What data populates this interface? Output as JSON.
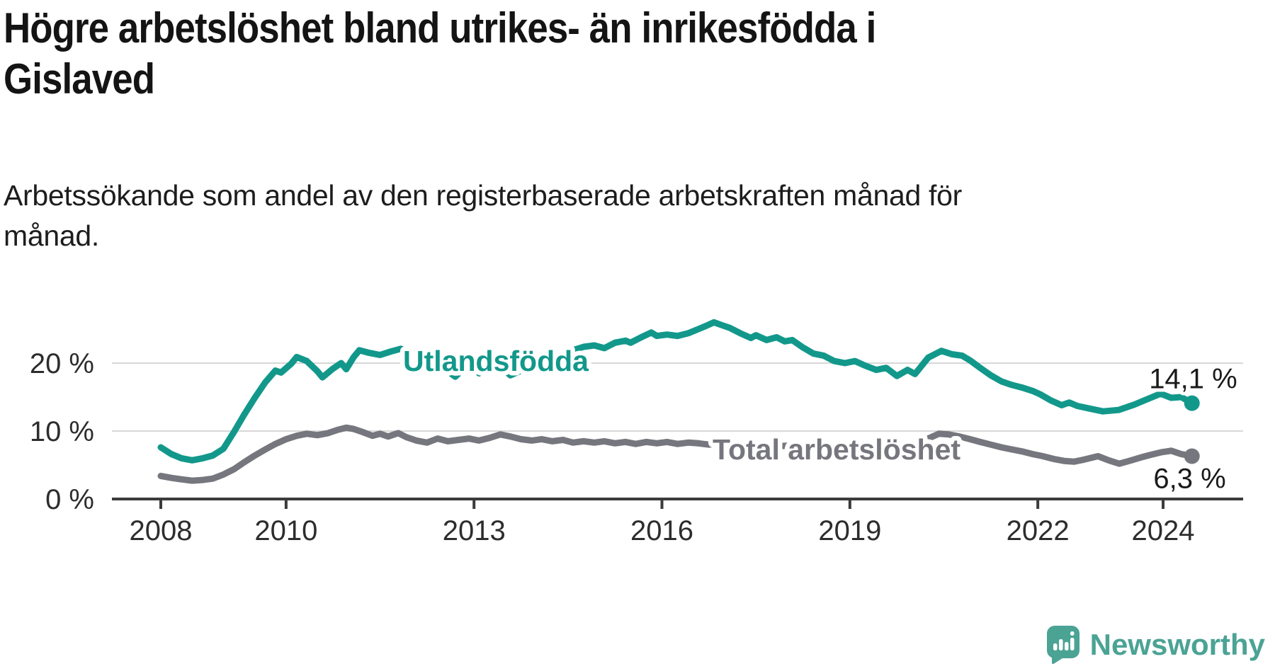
{
  "header": {
    "title_line1": "Högre arbetslöshet bland utrikes- än inrikesfödda i",
    "title_line2": "Gislaved",
    "subtitle_line1": "Arbetssökande som andel av den registerbaserade arbetskraften månad för",
    "subtitle_line2": "månad."
  },
  "footer": {
    "brand": "Newsworthy"
  },
  "colors": {
    "foreign_born": "#12988b",
    "total": "#76767e",
    "grid": "#d8d8d8",
    "axis": "#3b3b3b",
    "tick_text": "#2d2d2d",
    "value_text": "#1a1a1a",
    "brand": "#4ba394",
    "background": "#ffffff"
  },
  "chart_data": {
    "type": "line",
    "title": "Högre arbetslöshet bland utrikes- än inrikesfödda i Gislaved",
    "subtitle": "Arbetssökande som andel av den registerbaserade arbetskraften månad för månad.",
    "xlabel": "",
    "ylabel": "",
    "grid": "horizontal",
    "legend_position": "inline-on-line",
    "x_axis": {
      "range": [
        2007.22,
        2025.28
      ],
      "ticks": [
        {
          "value": 2008,
          "label": "2008"
        },
        {
          "value": 2010,
          "label": "2010"
        },
        {
          "value": 2013,
          "label": "2013"
        },
        {
          "value": 2016,
          "label": "2016"
        },
        {
          "value": 2019,
          "label": "2019"
        },
        {
          "value": 2022,
          "label": "2022"
        },
        {
          "value": 2024,
          "label": "2024"
        }
      ]
    },
    "y_axis": {
      "unit": "%",
      "range": [
        0,
        30.5
      ],
      "ticks": [
        {
          "value": 0,
          "label": "0 %"
        },
        {
          "value": 10,
          "label": "10 %"
        },
        {
          "value": 20,
          "label": "20 %"
        }
      ]
    },
    "series": [
      {
        "name": "Utlandsfödda",
        "color_key": "foreign_born",
        "end_value": 14.1,
        "end_label": "14,1 %",
        "points": [
          [
            2008.0,
            7.6
          ],
          [
            2008.17,
            6.6
          ],
          [
            2008.33,
            6.0
          ],
          [
            2008.5,
            5.7
          ],
          [
            2008.67,
            6.0
          ],
          [
            2008.83,
            6.4
          ],
          [
            2009.0,
            7.4
          ],
          [
            2009.17,
            9.9
          ],
          [
            2009.33,
            12.4
          ],
          [
            2009.5,
            14.9
          ],
          [
            2009.67,
            17.2
          ],
          [
            2009.83,
            18.9
          ],
          [
            2009.92,
            18.6
          ],
          [
            2010.08,
            19.9
          ],
          [
            2010.17,
            20.9
          ],
          [
            2010.33,
            20.3
          ],
          [
            2010.5,
            18.8
          ],
          [
            2010.58,
            17.9
          ],
          [
            2010.75,
            19.2
          ],
          [
            2010.88,
            20.0
          ],
          [
            2010.96,
            19.1
          ],
          [
            2011.08,
            20.9
          ],
          [
            2011.17,
            21.9
          ],
          [
            2011.33,
            21.5
          ],
          [
            2011.5,
            21.2
          ],
          [
            2011.67,
            21.7
          ],
          [
            2011.83,
            22.1
          ],
          [
            2012.0,
            21.6
          ],
          [
            2012.17,
            20.7
          ],
          [
            2012.33,
            19.8
          ],
          [
            2012.42,
            20.4
          ],
          [
            2012.58,
            18.8
          ],
          [
            2012.7,
            18.0
          ],
          [
            2012.83,
            19.1
          ],
          [
            2012.92,
            19.8
          ],
          [
            2013.08,
            18.5
          ],
          [
            2013.25,
            19.2
          ],
          [
            2013.42,
            19.5
          ],
          [
            2013.58,
            18.2
          ],
          [
            2013.75,
            18.9
          ],
          [
            2013.92,
            19.6
          ],
          [
            2014.08,
            20.2
          ],
          [
            2014.25,
            20.7
          ],
          [
            2014.42,
            21.3
          ],
          [
            2014.58,
            21.9
          ],
          [
            2014.75,
            22.4
          ],
          [
            2014.92,
            22.6
          ],
          [
            2015.08,
            22.2
          ],
          [
            2015.25,
            23.0
          ],
          [
            2015.42,
            23.3
          ],
          [
            2015.5,
            23.0
          ],
          [
            2015.67,
            23.8
          ],
          [
            2015.83,
            24.5
          ],
          [
            2015.92,
            24.0
          ],
          [
            2016.08,
            24.2
          ],
          [
            2016.25,
            24.0
          ],
          [
            2016.42,
            24.4
          ],
          [
            2016.58,
            25.0
          ],
          [
            2016.71,
            25.5
          ],
          [
            2016.83,
            26.0
          ],
          [
            2016.95,
            25.6
          ],
          [
            2017.08,
            25.2
          ],
          [
            2017.25,
            24.4
          ],
          [
            2017.42,
            23.7
          ],
          [
            2017.5,
            24.1
          ],
          [
            2017.67,
            23.4
          ],
          [
            2017.83,
            23.8
          ],
          [
            2017.96,
            23.2
          ],
          [
            2018.08,
            23.4
          ],
          [
            2018.25,
            22.3
          ],
          [
            2018.42,
            21.4
          ],
          [
            2018.58,
            21.1
          ],
          [
            2018.75,
            20.3
          ],
          [
            2018.92,
            20.0
          ],
          [
            2019.08,
            20.3
          ],
          [
            2019.25,
            19.6
          ],
          [
            2019.42,
            19.0
          ],
          [
            2019.58,
            19.3
          ],
          [
            2019.75,
            18.1
          ],
          [
            2019.92,
            19.0
          ],
          [
            2020.04,
            18.4
          ],
          [
            2020.25,
            20.8
          ],
          [
            2020.46,
            21.8
          ],
          [
            2020.63,
            21.3
          ],
          [
            2020.79,
            21.1
          ],
          [
            2020.92,
            20.4
          ],
          [
            2021.08,
            19.3
          ],
          [
            2021.25,
            18.2
          ],
          [
            2021.42,
            17.3
          ],
          [
            2021.58,
            16.8
          ],
          [
            2021.75,
            16.4
          ],
          [
            2021.92,
            15.9
          ],
          [
            2022.04,
            15.4
          ],
          [
            2022.21,
            14.5
          ],
          [
            2022.38,
            13.8
          ],
          [
            2022.5,
            14.2
          ],
          [
            2022.63,
            13.7
          ],
          [
            2022.83,
            13.3
          ],
          [
            2023.04,
            12.9
          ],
          [
            2023.29,
            13.1
          ],
          [
            2023.54,
            13.9
          ],
          [
            2023.75,
            14.7
          ],
          [
            2023.96,
            15.5
          ],
          [
            2024.13,
            14.9
          ],
          [
            2024.29,
            15.0
          ],
          [
            2024.46,
            14.1
          ]
        ]
      },
      {
        "name": "Total arbetslöshet",
        "color_key": "total",
        "end_value": 6.3,
        "end_label": "6,3 %",
        "points": [
          [
            2008.0,
            3.4
          ],
          [
            2008.17,
            3.1
          ],
          [
            2008.33,
            2.9
          ],
          [
            2008.5,
            2.7
          ],
          [
            2008.67,
            2.8
          ],
          [
            2008.83,
            3.0
          ],
          [
            2009.0,
            3.6
          ],
          [
            2009.17,
            4.4
          ],
          [
            2009.33,
            5.4
          ],
          [
            2009.5,
            6.4
          ],
          [
            2009.67,
            7.3
          ],
          [
            2009.83,
            8.1
          ],
          [
            2010.0,
            8.8
          ],
          [
            2010.17,
            9.3
          ],
          [
            2010.33,
            9.6
          ],
          [
            2010.5,
            9.4
          ],
          [
            2010.67,
            9.7
          ],
          [
            2010.83,
            10.2
          ],
          [
            2010.96,
            10.5
          ],
          [
            2011.08,
            10.3
          ],
          [
            2011.21,
            9.9
          ],
          [
            2011.38,
            9.3
          ],
          [
            2011.5,
            9.6
          ],
          [
            2011.63,
            9.2
          ],
          [
            2011.79,
            9.7
          ],
          [
            2011.92,
            9.1
          ],
          [
            2012.08,
            8.6
          ],
          [
            2012.25,
            8.3
          ],
          [
            2012.42,
            8.9
          ],
          [
            2012.58,
            8.5
          ],
          [
            2012.75,
            8.7
          ],
          [
            2012.92,
            8.9
          ],
          [
            2013.08,
            8.6
          ],
          [
            2013.25,
            9.0
          ],
          [
            2013.42,
            9.5
          ],
          [
            2013.58,
            9.2
          ],
          [
            2013.75,
            8.8
          ],
          [
            2013.92,
            8.6
          ],
          [
            2014.08,
            8.8
          ],
          [
            2014.25,
            8.5
          ],
          [
            2014.42,
            8.7
          ],
          [
            2014.58,
            8.3
          ],
          [
            2014.75,
            8.5
          ],
          [
            2014.92,
            8.3
          ],
          [
            2015.08,
            8.5
          ],
          [
            2015.25,
            8.2
          ],
          [
            2015.42,
            8.4
          ],
          [
            2015.58,
            8.1
          ],
          [
            2015.75,
            8.4
          ],
          [
            2015.92,
            8.2
          ],
          [
            2016.08,
            8.4
          ],
          [
            2016.25,
            8.1
          ],
          [
            2016.42,
            8.3
          ],
          [
            2016.58,
            8.2
          ],
          [
            2016.75,
            8.0
          ],
          [
            2016.92,
            8.3
          ],
          [
            2017.08,
            8.1
          ],
          [
            2017.25,
            7.9
          ],
          [
            2017.42,
            8.1
          ],
          [
            2017.58,
            7.9
          ],
          [
            2017.75,
            8.0
          ],
          [
            2017.92,
            7.8
          ],
          [
            2018.08,
            7.9
          ],
          [
            2018.25,
            7.7
          ],
          [
            2018.42,
            7.8
          ],
          [
            2018.58,
            7.6
          ],
          [
            2018.75,
            7.4
          ],
          [
            2018.92,
            7.5
          ],
          [
            2019.08,
            7.3
          ],
          [
            2019.25,
            7.4
          ],
          [
            2019.42,
            7.2
          ],
          [
            2019.58,
            7.3
          ],
          [
            2019.75,
            7.1
          ],
          [
            2019.92,
            7.4
          ],
          [
            2020.08,
            7.8
          ],
          [
            2020.25,
            8.9
          ],
          [
            2020.42,
            9.6
          ],
          [
            2020.58,
            9.5
          ],
          [
            2020.75,
            9.2
          ],
          [
            2020.92,
            8.8
          ],
          [
            2021.08,
            8.4
          ],
          [
            2021.25,
            8.0
          ],
          [
            2021.42,
            7.6
          ],
          [
            2021.58,
            7.3
          ],
          [
            2021.75,
            7.0
          ],
          [
            2021.92,
            6.6
          ],
          [
            2022.08,
            6.3
          ],
          [
            2022.25,
            5.9
          ],
          [
            2022.42,
            5.6
          ],
          [
            2022.58,
            5.5
          ],
          [
            2022.74,
            5.8
          ],
          [
            2022.96,
            6.3
          ],
          [
            2023.13,
            5.7
          ],
          [
            2023.3,
            5.2
          ],
          [
            2023.46,
            5.6
          ],
          [
            2023.64,
            6.1
          ],
          [
            2023.8,
            6.5
          ],
          [
            2023.98,
            6.9
          ],
          [
            2024.13,
            7.1
          ],
          [
            2024.29,
            6.6
          ],
          [
            2024.46,
            6.3
          ]
        ]
      }
    ]
  }
}
